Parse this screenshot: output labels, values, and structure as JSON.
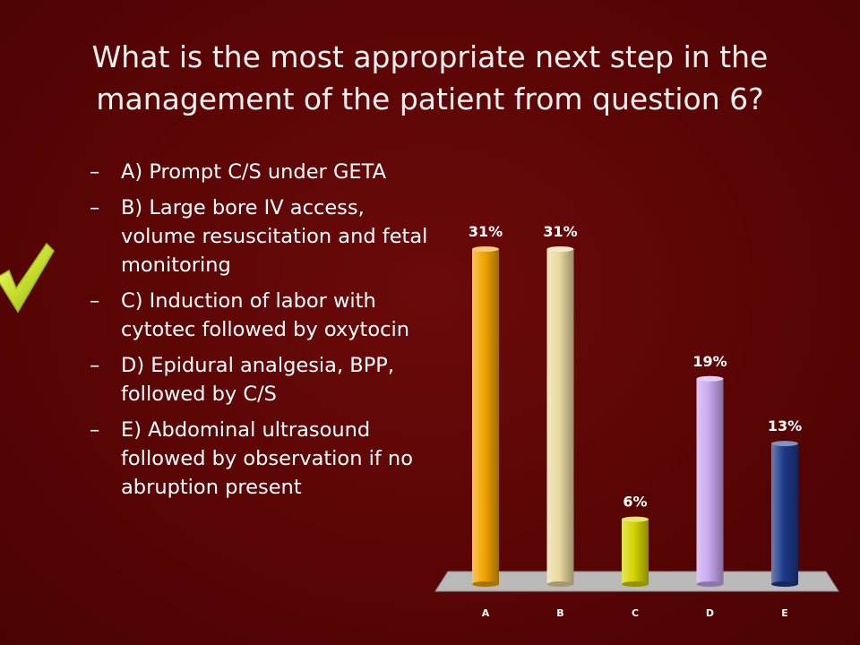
{
  "question": {
    "title": "What is the most appropriate next step in the management of the patient from question 6?"
  },
  "options": [
    {
      "dash": "–",
      "text": "A) Prompt C/S under GETA"
    },
    {
      "dash": "–",
      "text": "B) Large bore IV access, volume resuscitation and fetal monitoring"
    },
    {
      "dash": "–",
      "text": "C) Induction of labor with cytotec followed by oxytocin"
    },
    {
      "dash": "–",
      "text": "D) Epidural analgesia, BPP, followed by C/S"
    },
    {
      "dash": "–",
      "text": "E) Abdominal ultrasound followed by observation if no abruption present"
    }
  ],
  "icons": {
    "correct_marker": "checkmark-icon",
    "correct_color": "#c8e030"
  },
  "chart_data": {
    "type": "bar",
    "categories": [
      "A",
      "B",
      "C",
      "D",
      "E"
    ],
    "values": [
      31,
      31,
      6,
      19,
      13
    ],
    "labels": [
      "31%",
      "31%",
      "6%",
      "19%",
      "13%"
    ],
    "colors": [
      "#f2a400",
      "#eadba0",
      "#d4d400",
      "#c9a8f0",
      "#1e3a8a"
    ],
    "ylim": [
      0,
      31
    ],
    "floor_color": "#b9b9b9",
    "grid": false,
    "title": "",
    "xlabel": "",
    "ylabel": ""
  }
}
